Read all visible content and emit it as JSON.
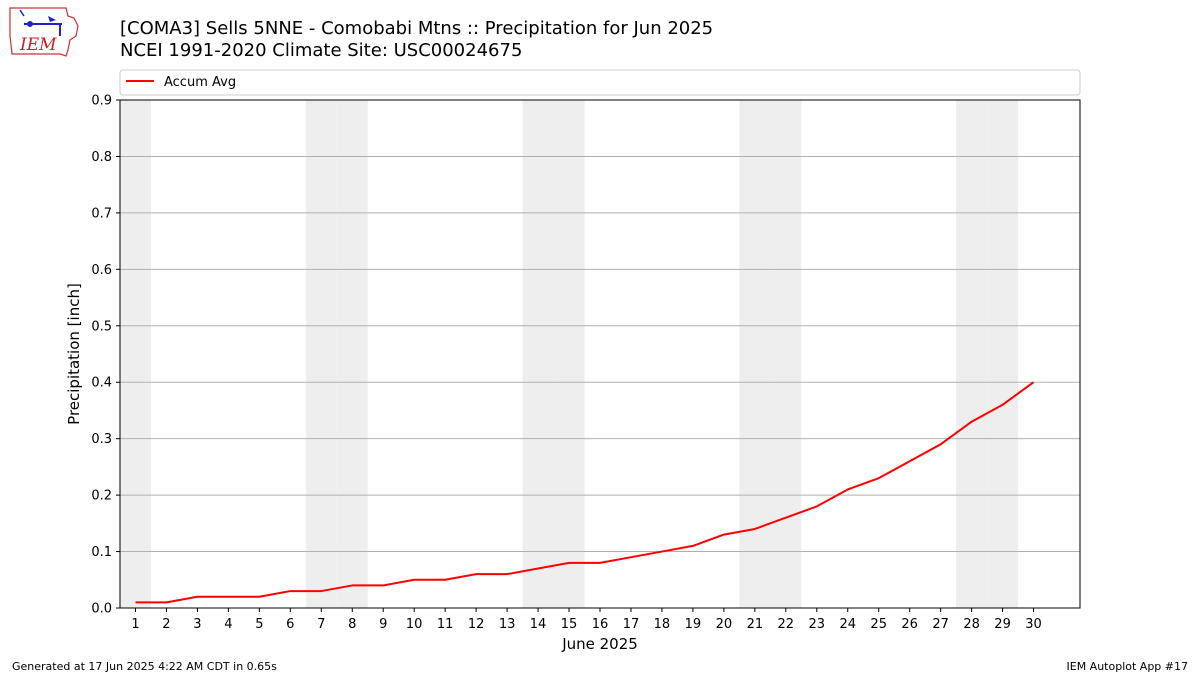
{
  "header": {
    "title_line1": "[COMA3] Sells 5NNE - Comobabi Mtns :: Precipitation for Jun 2025",
    "title_line2": "NCEI 1991-2020 Climate Site: USC00024675"
  },
  "logo": {
    "text": "IEM",
    "icon": "iem-iowa-logo-icon"
  },
  "footer": {
    "left": "Generated at 17 Jun 2025 4:22 AM CDT in 0.65s",
    "right": "IEM Autoplot App #17"
  },
  "colors": {
    "series": "#ff0000",
    "weekend_band": "#eeeeee",
    "grid": "#b0b0b0"
  },
  "chart_data": {
    "type": "line",
    "xlabel": "June 2025",
    "ylabel": "Precipitation [inch]",
    "xlim": [
      0.5,
      31.5
    ],
    "ylim": [
      0,
      0.9
    ],
    "yticks": [
      0.0,
      0.1,
      0.2,
      0.3,
      0.4,
      0.5,
      0.6,
      0.7,
      0.8,
      0.9
    ],
    "ytick_labels": [
      "0.0",
      "0.1",
      "0.2",
      "0.3",
      "0.4",
      "0.5",
      "0.6",
      "0.7",
      "0.8",
      "0.9"
    ],
    "x": [
      1,
      2,
      3,
      4,
      5,
      6,
      7,
      8,
      9,
      10,
      11,
      12,
      13,
      14,
      15,
      16,
      17,
      18,
      19,
      20,
      21,
      22,
      23,
      24,
      25,
      26,
      27,
      28,
      29,
      30
    ],
    "xtick_labels": [
      "1",
      "2",
      "3",
      "4",
      "5",
      "6",
      "7",
      "8",
      "9",
      "10",
      "11",
      "12",
      "13",
      "14",
      "15",
      "16",
      "17",
      "18",
      "19",
      "20",
      "21",
      "22",
      "23",
      "24",
      "25",
      "26",
      "27",
      "28",
      "29",
      "30"
    ],
    "weekend_days": [
      1,
      7,
      8,
      14,
      15,
      21,
      22,
      28,
      29
    ],
    "grid": "horizontal",
    "legend_position": "top",
    "series": [
      {
        "name": "Accum Avg",
        "color": "#ff0000",
        "values": [
          0.01,
          0.01,
          0.02,
          0.02,
          0.02,
          0.03,
          0.03,
          0.04,
          0.04,
          0.05,
          0.05,
          0.06,
          0.06,
          0.07,
          0.08,
          0.08,
          0.09,
          0.1,
          0.11,
          0.13,
          0.14,
          0.16,
          0.18,
          0.21,
          0.23,
          0.26,
          0.29,
          0.33,
          0.36,
          0.4
        ]
      }
    ]
  }
}
